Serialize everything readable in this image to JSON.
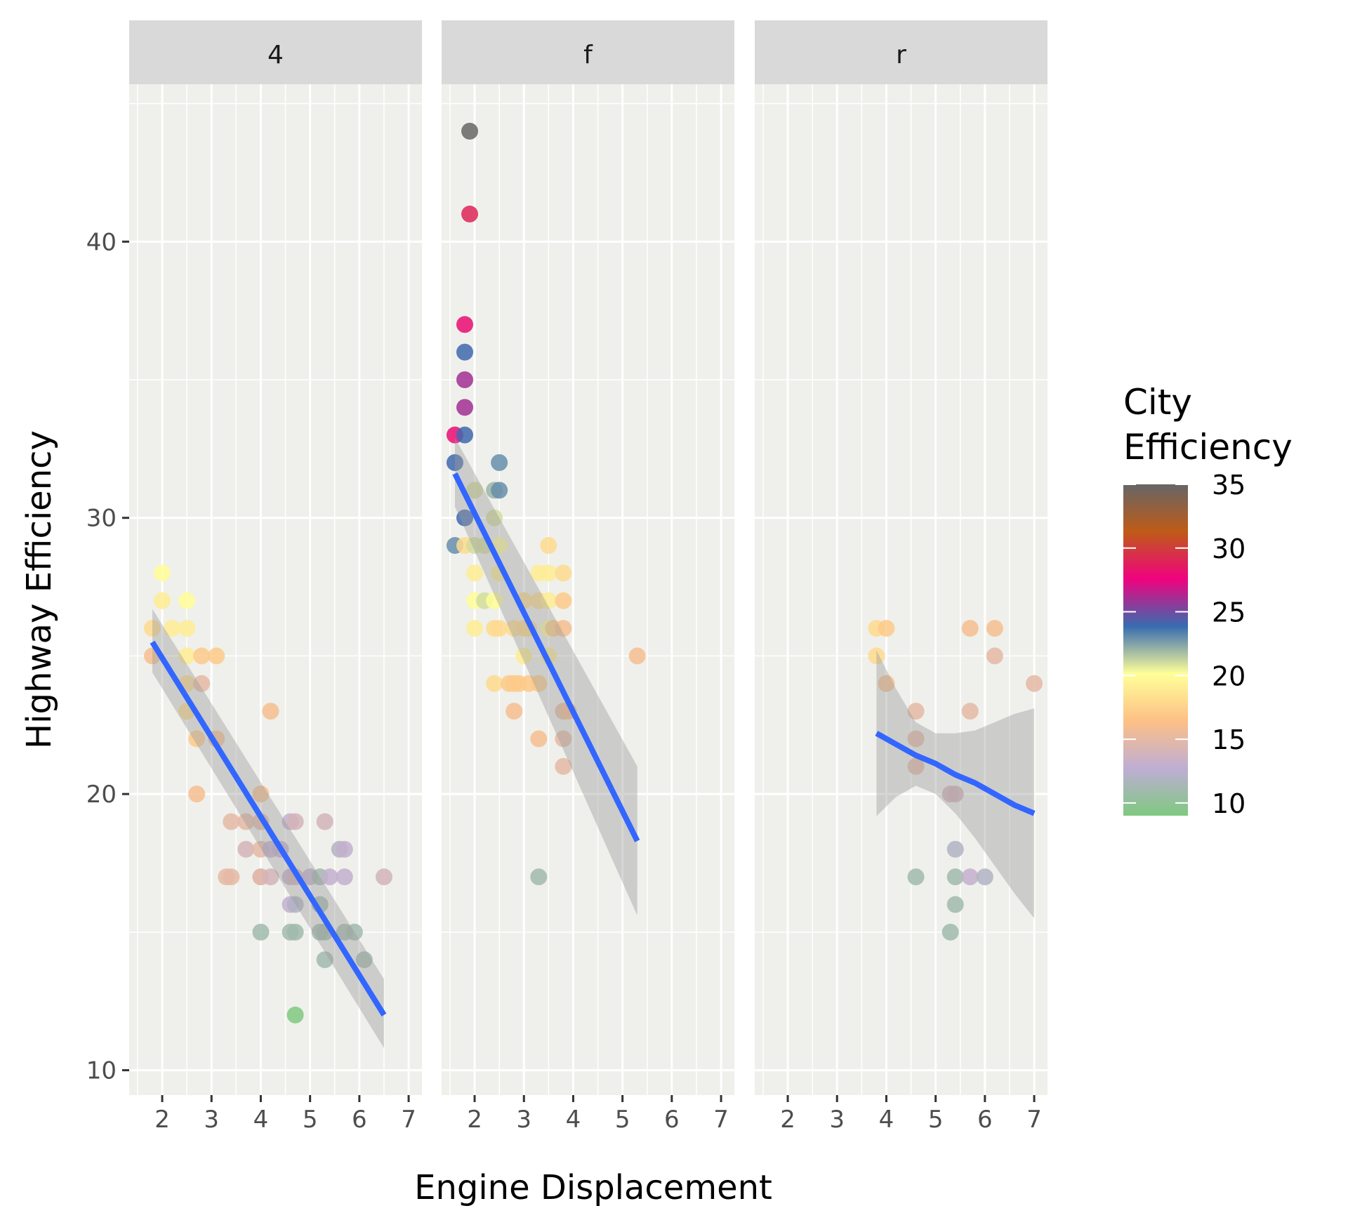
{
  "chart_data": {
    "type": "scatter",
    "facet_by": "drive",
    "facets": [
      "4",
      "f",
      "r"
    ],
    "xlabel": "Engine Displacement",
    "ylabel": "Highway Efficiency",
    "xlim": [
      1.33,
      7.27
    ],
    "ylim": [
      9.1,
      45.7
    ],
    "xticks": [
      2,
      3,
      4,
      5,
      6,
      7
    ],
    "yticks": [
      10,
      20,
      30,
      40
    ],
    "grid": true,
    "legend": {
      "title_lines": [
        "City",
        "Efficiency"
      ],
      "position": "right",
      "type": "colorbar",
      "range": [
        9,
        35
      ],
      "ticks": [
        10,
        15,
        20,
        25,
        30,
        35
      ],
      "palette": [
        "#7fc97f",
        "#beaed4",
        "#fdc086",
        "#ffff99",
        "#386cb0",
        "#f0027f",
        "#bf5b17",
        "#666666"
      ]
    },
    "series": [
      {
        "name": "4",
        "points": [
          [
            1.8,
            26,
            18
          ],
          [
            1.8,
            25,
            16
          ],
          [
            2.0,
            28,
            20
          ],
          [
            2.0,
            27,
            19
          ],
          [
            2.2,
            26,
            19
          ],
          [
            2.5,
            27,
            20
          ],
          [
            2.5,
            26,
            19
          ],
          [
            2.5,
            25,
            19
          ],
          [
            2.5,
            24,
            18
          ],
          [
            2.5,
            23,
            18
          ],
          [
            2.8,
            25,
            17
          ],
          [
            3.1,
            25,
            17
          ],
          [
            2.8,
            24,
            15
          ],
          [
            2.7,
            22,
            17
          ],
          [
            2.7,
            20,
            16
          ],
          [
            3.1,
            22,
            16
          ],
          [
            4.2,
            23,
            16
          ],
          [
            4.0,
            20,
            16
          ],
          [
            3.4,
            19,
            15
          ],
          [
            3.7,
            19,
            15
          ],
          [
            3.3,
            17,
            15
          ],
          [
            3.4,
            17,
            15
          ],
          [
            3.7,
            18,
            14
          ],
          [
            4.0,
            19,
            15
          ],
          [
            4.0,
            18,
            15
          ],
          [
            4.0,
            17,
            13
          ],
          [
            4.0,
            17,
            15
          ],
          [
            4.2,
            17,
            14
          ],
          [
            4.2,
            18,
            13
          ],
          [
            4.4,
            18,
            13
          ],
          [
            4.6,
            19,
            13
          ],
          [
            4.7,
            19,
            14
          ],
          [
            5.3,
            19,
            14
          ],
          [
            4.6,
            17,
            13
          ],
          [
            4.7,
            17,
            14
          ],
          [
            5.0,
            17,
            13
          ],
          [
            5.2,
            17,
            11
          ],
          [
            5.4,
            17,
            13
          ],
          [
            5.7,
            17,
            13
          ],
          [
            6.5,
            17,
            14
          ],
          [
            4.6,
            16,
            13
          ],
          [
            4.7,
            16,
            12
          ],
          [
            5.2,
            16,
            11
          ],
          [
            4.0,
            15,
            11
          ],
          [
            4.6,
            15,
            11
          ],
          [
            4.7,
            15,
            11
          ],
          [
            5.2,
            15,
            11
          ],
          [
            5.3,
            15,
            11
          ],
          [
            5.7,
            15,
            11
          ],
          [
            5.9,
            15,
            11
          ],
          [
            5.6,
            18,
            12
          ],
          [
            5.7,
            18,
            13
          ],
          [
            5.3,
            14,
            11
          ],
          [
            6.1,
            14,
            11
          ],
          [
            4.7,
            12,
            9
          ]
        ],
        "fit": {
          "x": [
            1.8,
            6.5
          ],
          "y": [
            25.5,
            12.0
          ],
          "ci_low": [
            24.4,
            10.8
          ],
          "ci_high": [
            26.7,
            13.3
          ]
        }
      },
      {
        "name": "f",
        "points": [
          [
            1.9,
            44,
            35
          ],
          [
            1.9,
            41,
            29
          ],
          [
            1.8,
            37,
            28
          ],
          [
            1.8,
            36,
            24
          ],
          [
            1.8,
            35,
            26
          ],
          [
            1.8,
            34,
            26
          ],
          [
            1.6,
            33,
            28
          ],
          [
            1.8,
            33,
            24
          ],
          [
            1.6,
            32,
            24
          ],
          [
            2.5,
            32,
            23
          ],
          [
            2.4,
            31,
            22
          ],
          [
            2.5,
            31,
            23
          ],
          [
            2.0,
            31,
            21
          ],
          [
            1.8,
            30,
            24
          ],
          [
            2.4,
            30,
            21
          ],
          [
            1.6,
            29,
            23
          ],
          [
            1.8,
            29,
            18
          ],
          [
            2.0,
            29,
            21
          ],
          [
            2.2,
            29,
            21
          ],
          [
            2.5,
            29,
            20
          ],
          [
            3.5,
            29,
            18
          ],
          [
            2.0,
            28,
            19
          ],
          [
            2.5,
            28,
            19
          ],
          [
            3.3,
            28,
            19
          ],
          [
            3.5,
            28,
            19
          ],
          [
            3.8,
            28,
            18
          ],
          [
            2.0,
            27,
            20
          ],
          [
            2.2,
            27,
            21
          ],
          [
            2.4,
            27,
            20
          ],
          [
            3.0,
            27,
            18
          ],
          [
            3.3,
            27,
            18
          ],
          [
            3.5,
            27,
            19
          ],
          [
            3.8,
            27,
            17
          ],
          [
            2.0,
            26,
            19
          ],
          [
            2.4,
            26,
            18
          ],
          [
            2.5,
            26,
            18
          ],
          [
            2.8,
            26,
            18
          ],
          [
            3.0,
            26,
            18
          ],
          [
            3.1,
            26,
            18
          ],
          [
            3.5,
            26,
            20
          ],
          [
            3.6,
            26,
            17
          ],
          [
            3.8,
            26,
            16
          ],
          [
            3.0,
            25,
            19
          ],
          [
            3.5,
            25,
            19
          ],
          [
            2.4,
            24,
            18
          ],
          [
            2.7,
            24,
            17
          ],
          [
            2.8,
            24,
            17
          ],
          [
            2.9,
            24,
            17
          ],
          [
            3.1,
            24,
            17
          ],
          [
            3.3,
            24,
            17
          ],
          [
            2.8,
            23,
            16
          ],
          [
            3.8,
            23,
            15
          ],
          [
            3.9,
            23,
            16
          ],
          [
            3.3,
            22,
            16
          ],
          [
            3.8,
            22,
            15
          ],
          [
            3.8,
            21,
            15
          ],
          [
            5.3,
            25,
            16
          ],
          [
            3.3,
            17,
            11
          ]
        ],
        "fit": {
          "x": [
            1.6,
            5.3
          ],
          "y": [
            31.6,
            18.3
          ],
          "ci_low": [
            30.4,
            15.6
          ],
          "ci_high": [
            32.9,
            21.0
          ]
        }
      },
      {
        "name": "r",
        "points": [
          [
            3.8,
            26,
            18
          ],
          [
            4.0,
            26,
            17
          ],
          [
            5.7,
            26,
            16
          ],
          [
            6.2,
            26,
            16
          ],
          [
            3.8,
            25,
            18
          ],
          [
            6.2,
            25,
            15
          ],
          [
            4.0,
            24,
            16
          ],
          [
            7.0,
            24,
            15
          ],
          [
            4.6,
            23,
            15
          ],
          [
            5.7,
            23,
            15
          ],
          [
            4.6,
            22,
            15
          ],
          [
            4.6,
            21,
            15
          ],
          [
            5.3,
            20,
            14
          ],
          [
            5.4,
            20,
            14
          ],
          [
            5.4,
            18,
            12
          ],
          [
            4.6,
            17,
            11
          ],
          [
            5.4,
            17,
            11
          ],
          [
            5.7,
            17,
            13
          ],
          [
            6.0,
            17,
            12
          ],
          [
            5.4,
            16,
            11
          ],
          [
            5.3,
            15,
            11
          ]
        ],
        "fit": {
          "x": [
            3.8,
            4.2,
            4.6,
            5.0,
            5.4,
            5.8,
            6.2,
            6.6,
            7.0
          ],
          "y": [
            22.2,
            21.8,
            21.4,
            21.1,
            20.7,
            20.4,
            20.0,
            19.6,
            19.3
          ],
          "ci_low": [
            19.2,
            19.9,
            20.3,
            20.0,
            19.3,
            18.4,
            17.4,
            16.4,
            15.5
          ],
          "ci_high": [
            25.2,
            23.8,
            22.6,
            22.2,
            22.2,
            22.3,
            22.6,
            22.9,
            23.1
          ]
        }
      }
    ]
  }
}
